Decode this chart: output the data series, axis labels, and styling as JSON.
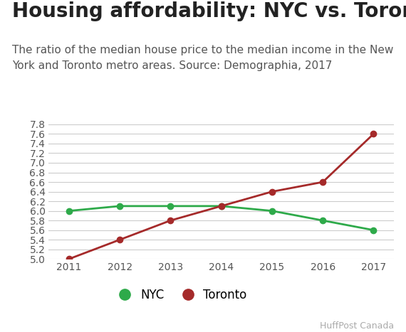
{
  "title": "Housing affordability: NYC vs. Toronto",
  "subtitle": "The ratio of the median house price to the median income in the New\nYork and Toronto metro areas. Source: Demographia, 2017",
  "years": [
    2011,
    2012,
    2013,
    2014,
    2015,
    2016,
    2017
  ],
  "nyc": [
    6.0,
    6.1,
    6.1,
    6.1,
    6.0,
    5.8,
    5.6
  ],
  "toronto": [
    5.0,
    5.4,
    5.8,
    6.1,
    6.4,
    6.6,
    7.6
  ],
  "nyc_color": "#2eaa4a",
  "toronto_color": "#a52a2a",
  "ylim": [
    5.0,
    7.9
  ],
  "yticks": [
    5.0,
    5.2,
    5.4,
    5.6,
    5.8,
    6.0,
    6.2,
    6.4,
    6.6,
    6.8,
    7.0,
    7.2,
    7.4,
    7.6,
    7.8
  ],
  "background_color": "#ffffff",
  "grid_color": "#cccccc",
  "title_fontsize": 20,
  "subtitle_fontsize": 11,
  "tick_fontsize": 10,
  "legend_labels": [
    "NYC",
    "Toronto"
  ],
  "source_text": "HuffPost Canada"
}
